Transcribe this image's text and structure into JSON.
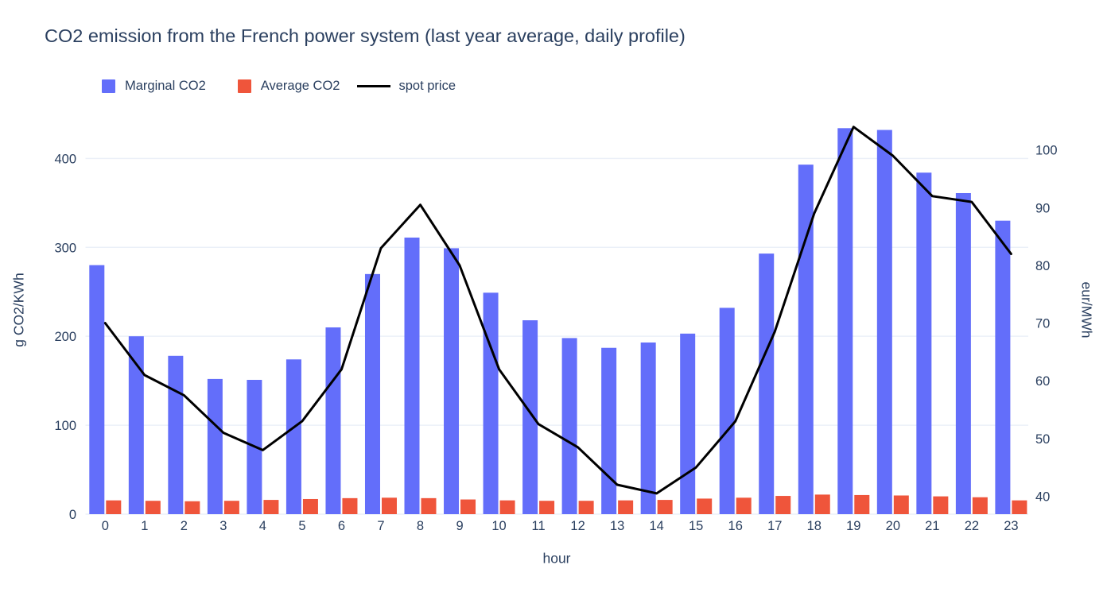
{
  "title": "CO2 emission from the French power system (last year average, daily profile)",
  "legend": {
    "items": [
      {
        "label": "Marginal CO2",
        "color": "#636EFA",
        "marker": "square"
      },
      {
        "label": "Average CO2",
        "color": "#EF553B",
        "marker": "square"
      },
      {
        "label": "spot price",
        "color": "#000000",
        "marker": "line"
      }
    ]
  },
  "colors": {
    "marginal_bar": "#636EFA",
    "average_bar": "#EF553B",
    "spot_line": "#000000",
    "text": "#2a3f5f",
    "gridline": "#EBF0F8",
    "background": "#ffffff"
  },
  "chart_data": {
    "type": "bar+line",
    "title": "CO2 emission from the French power system (last year average, daily profile)",
    "xlabel": "hour",
    "ylabel_left": "g CO2/KWh",
    "ylabel_right": "eur/MWh",
    "categories": [
      0,
      1,
      2,
      3,
      4,
      5,
      6,
      7,
      8,
      9,
      10,
      11,
      12,
      13,
      14,
      15,
      16,
      17,
      18,
      19,
      20,
      21,
      22,
      23
    ],
    "x_tick_labels": [
      "0",
      "1",
      "2",
      "3",
      "4",
      "5",
      "6",
      "7",
      "8",
      "9",
      "10",
      "11",
      "12",
      "13",
      "14",
      "15",
      "16",
      "17",
      "18",
      "19",
      "20",
      "21",
      "22",
      "23"
    ],
    "left_ticks": [
      0,
      100,
      200,
      300,
      400
    ],
    "right_ticks": [
      40,
      50,
      60,
      70,
      80,
      90,
      100
    ],
    "left_range": [
      0,
      457.5
    ],
    "right_range": [
      36.9,
      107.4
    ],
    "grid": true,
    "legend_position": "top-left",
    "series": [
      {
        "name": "Marginal CO2",
        "type": "bar",
        "axis": "left",
        "color": "#636EFA",
        "values": [
          280,
          200,
          178,
          152,
          151,
          174,
          210,
          270,
          311,
          299,
          249,
          218,
          198,
          187,
          193,
          203,
          232,
          293,
          393,
          434,
          432,
          384,
          361,
          330
        ]
      },
      {
        "name": "Average CO2",
        "type": "bar",
        "axis": "left",
        "color": "#EF553B",
        "values": [
          15.5,
          15,
          14.5,
          15,
          16,
          17,
          18,
          18.5,
          18,
          16.5,
          15.5,
          15,
          15,
          15.5,
          16,
          17.5,
          18.5,
          20.5,
          22,
          21.5,
          21,
          20,
          19,
          15.5
        ]
      },
      {
        "name": "spot price",
        "type": "line",
        "axis": "right",
        "color": "#000000",
        "values": [
          70,
          61,
          57.5,
          51,
          48,
          53,
          62,
          83,
          90.5,
          80,
          62,
          52.5,
          48.5,
          42,
          40.5,
          45,
          53,
          68.5,
          89,
          104,
          99,
          92,
          91,
          82
        ]
      }
    ]
  }
}
